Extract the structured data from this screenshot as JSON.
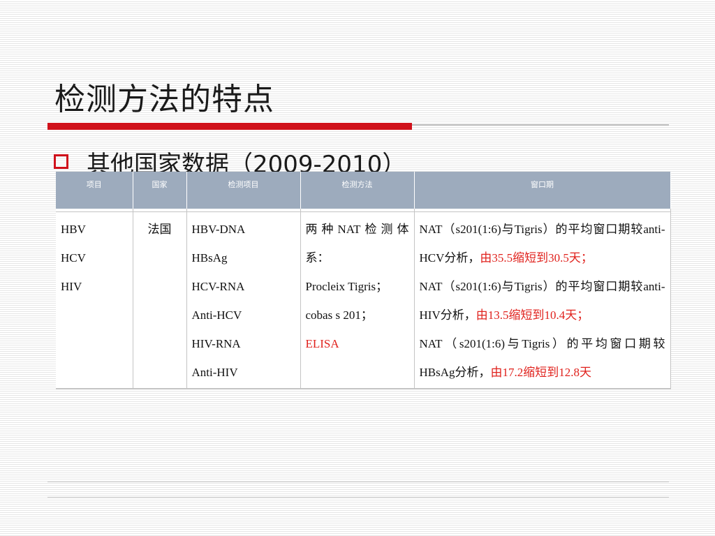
{
  "slide": {
    "title": "检测方法的特点",
    "subtitle": "其他国家数据（2009-2010）"
  },
  "table": {
    "headers": [
      "项目",
      "国家",
      "检测项目",
      "检测方法",
      "窗口期"
    ],
    "items": [
      "HBV",
      "HCV",
      "HIV"
    ],
    "country": "法国",
    "tests": [
      "HBV-DNA",
      "HBsAg",
      "HCV-RNA",
      "Anti-HCV",
      "HIV-RNA",
      "Anti-HIV"
    ],
    "methods": {
      "line1": "两种NAT检测体系：",
      "line2": "Procleix Tigris；",
      "line3": "cobas s 201；",
      "line4": "ELISA"
    },
    "window": [
      {
        "text": "NAT（s201(1:6)与Tigris）的平均窗口期较anti-HCV分析，",
        "highlight": "由35.5缩短到30.5天；"
      },
      {
        "text": "NAT（s201(1:6)与Tigris）的平均窗口期较anti-HIV分析，",
        "highlight": "由13.5缩短到10.4天；"
      },
      {
        "text": "NAT（s201(1:6)与Tigris）的平均窗口期较HBsAg分析，",
        "highlight": "由17.2缩短到12.8天"
      }
    ]
  },
  "colors": {
    "accent_red": "#d0111b",
    "header_bg": "#9dabbd",
    "highlight_text": "#e0211c"
  }
}
